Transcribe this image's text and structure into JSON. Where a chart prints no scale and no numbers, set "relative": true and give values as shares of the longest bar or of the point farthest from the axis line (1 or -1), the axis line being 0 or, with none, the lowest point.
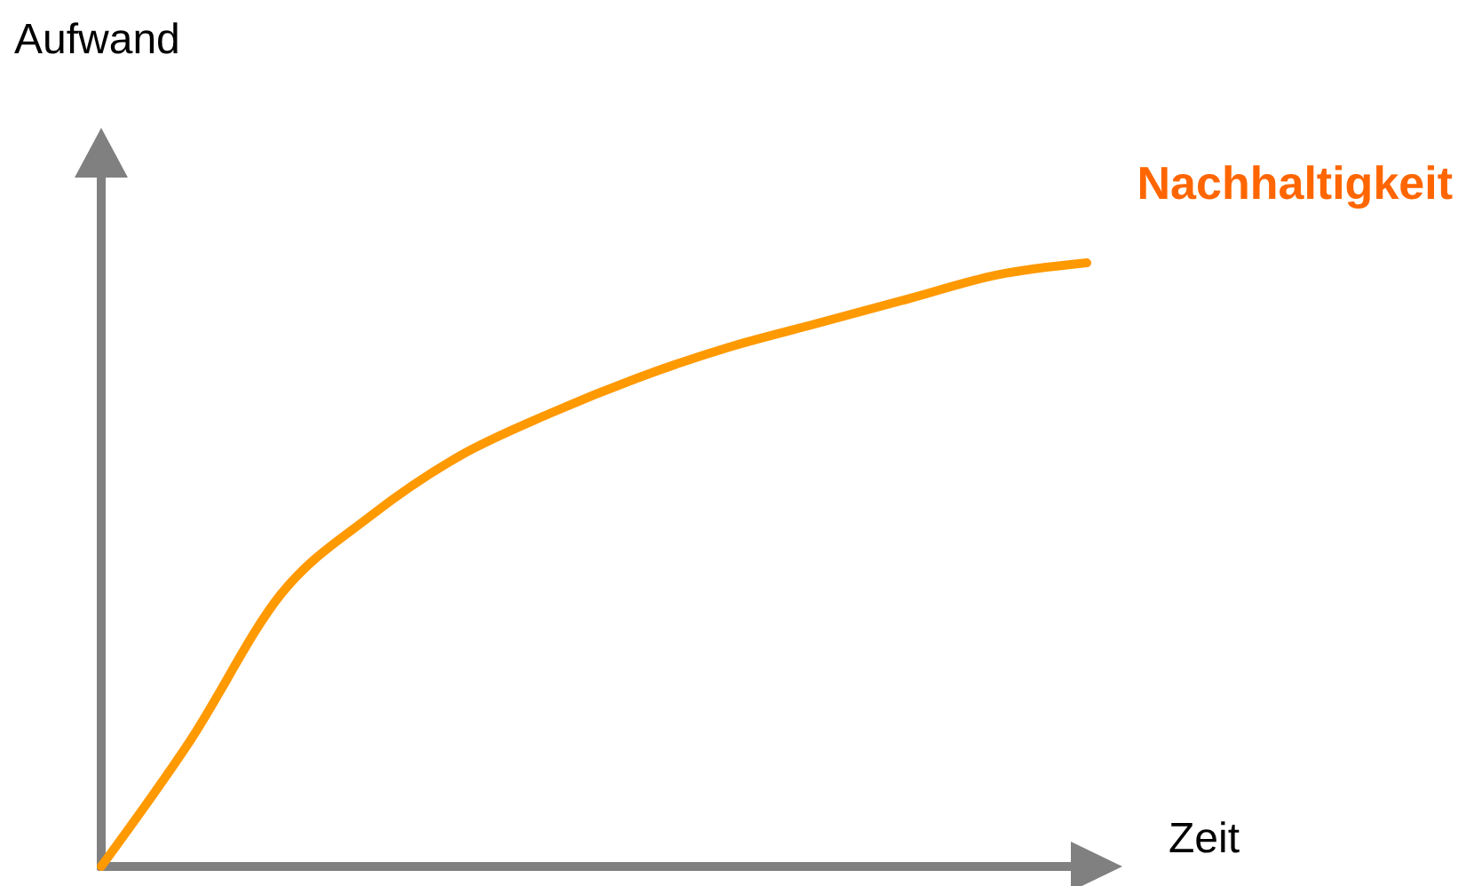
{
  "chart_data": {
    "type": "line",
    "relative": true,
    "xlabel": "Zeit",
    "ylabel": "Aufwand",
    "legend": false,
    "categories": [
      null,
      null,
      null,
      null,
      null,
      null,
      null,
      null,
      null,
      null,
      null,
      null
    ],
    "series": [
      {
        "name": "Nachhaltigkeit",
        "color": "#ff9900",
        "values": [
          0,
          0.21,
          0.45,
          0.58,
          0.68,
          0.75,
          0.81,
          0.86,
          0.9,
          0.94,
          0.98,
          1
        ]
      }
    ]
  }
}
